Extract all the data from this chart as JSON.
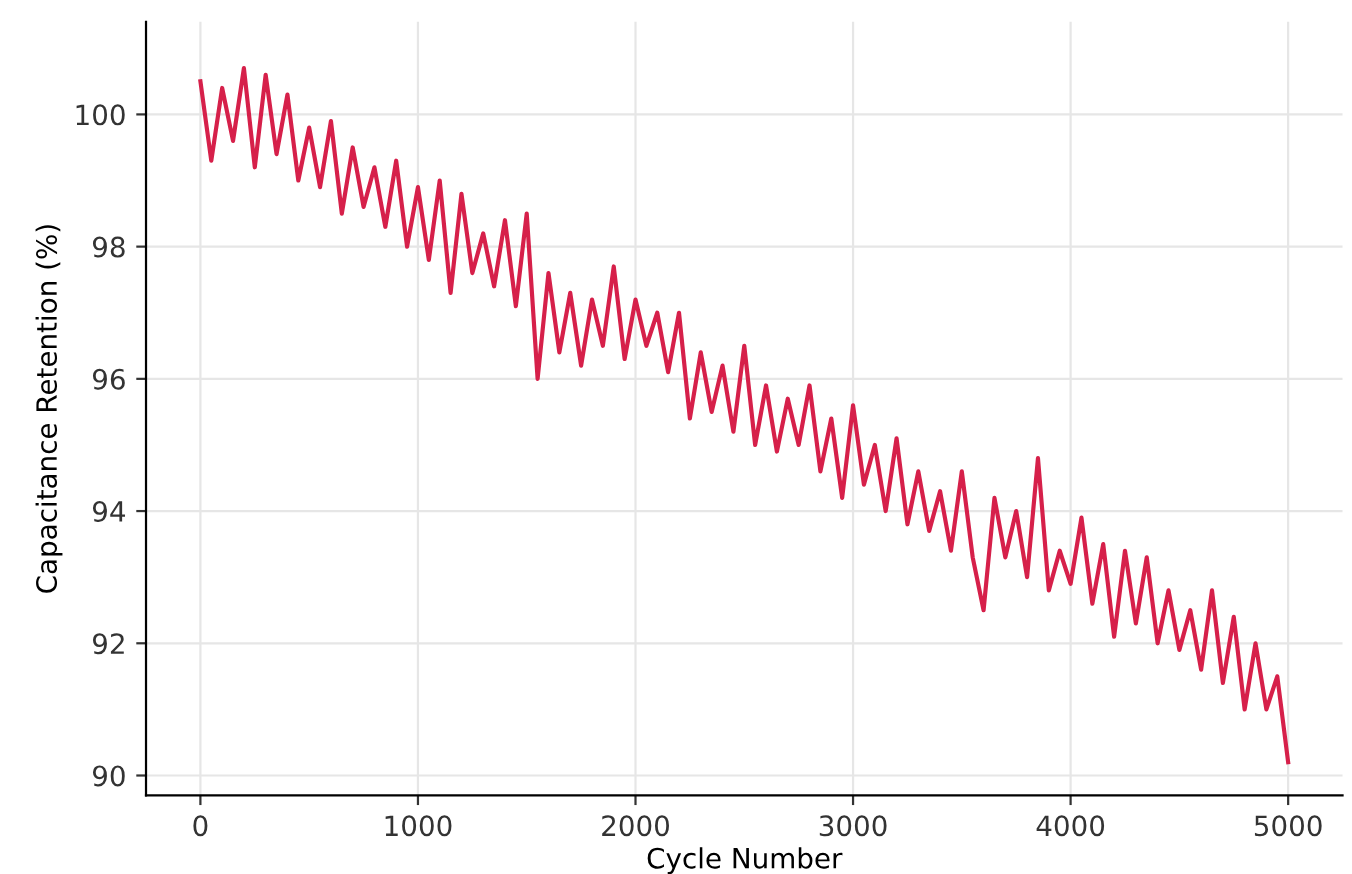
{
  "chart_data": {
    "type": "line",
    "xlabel": "Cycle Number",
    "ylabel": "Capacitance Retention (%)",
    "xlim": [
      -250,
      5250
    ],
    "ylim": [
      89.7,
      101.4
    ],
    "xticks": [
      0,
      1000,
      2000,
      3000,
      4000,
      5000
    ],
    "yticks": [
      90,
      92,
      94,
      96,
      98,
      100
    ],
    "grid": true,
    "marker": "none",
    "line_style": "solid",
    "x": [
      0,
      50,
      100,
      150,
      200,
      250,
      300,
      350,
      400,
      450,
      500,
      550,
      600,
      650,
      700,
      750,
      800,
      850,
      900,
      950,
      1000,
      1050,
      1100,
      1150,
      1200,
      1250,
      1300,
      1350,
      1400,
      1450,
      1500,
      1550,
      1600,
      1650,
      1700,
      1750,
      1800,
      1850,
      1900,
      1950,
      2000,
      2050,
      2100,
      2150,
      2200,
      2250,
      2300,
      2350,
      2400,
      2450,
      2500,
      2550,
      2600,
      2650,
      2700,
      2750,
      2800,
      2850,
      2900,
      2950,
      3000,
      3050,
      3100,
      3150,
      3200,
      3250,
      3300,
      3350,
      3400,
      3450,
      3500,
      3550,
      3600,
      3650,
      3700,
      3750,
      3800,
      3850,
      3900,
      3950,
      4000,
      4050,
      4100,
      4150,
      4200,
      4250,
      4300,
      4350,
      4400,
      4450,
      4500,
      4550,
      4600,
      4650,
      4700,
      4750,
      4800,
      4850,
      4900,
      4950,
      5000
    ],
    "series": [
      {
        "color": "#d6204a",
        "values": [
          100.5,
          99.3,
          100.4,
          99.6,
          100.7,
          99.2,
          100.6,
          99.4,
          100.3,
          99.0,
          99.8,
          98.9,
          99.9,
          98.5,
          99.5,
          98.6,
          99.2,
          98.3,
          99.3,
          98.0,
          98.9,
          97.8,
          99.0,
          97.3,
          98.8,
          97.6,
          98.2,
          97.4,
          98.4,
          97.1,
          98.5,
          96.0,
          97.6,
          96.4,
          97.3,
          96.2,
          97.2,
          96.5,
          97.7,
          96.3,
          97.2,
          96.5,
          97.0,
          96.1,
          97.0,
          95.4,
          96.4,
          95.5,
          96.2,
          95.2,
          96.5,
          95.0,
          95.9,
          94.9,
          95.7,
          95.0,
          95.9,
          94.6,
          95.4,
          94.2,
          95.6,
          94.4,
          95.0,
          94.0,
          95.1,
          93.8,
          94.6,
          93.7,
          94.3,
          93.4,
          94.6,
          93.3,
          92.5,
          94.2,
          93.3,
          94.0,
          93.0,
          94.8,
          92.8,
          93.4,
          92.9,
          93.9,
          92.6,
          93.5,
          92.1,
          93.4,
          92.3,
          93.3,
          92.0,
          92.8,
          91.9,
          92.5,
          91.6,
          92.8,
          91.4,
          92.4,
          91.0,
          92.0,
          91.0,
          91.5,
          90.2
        ]
      }
    ]
  }
}
